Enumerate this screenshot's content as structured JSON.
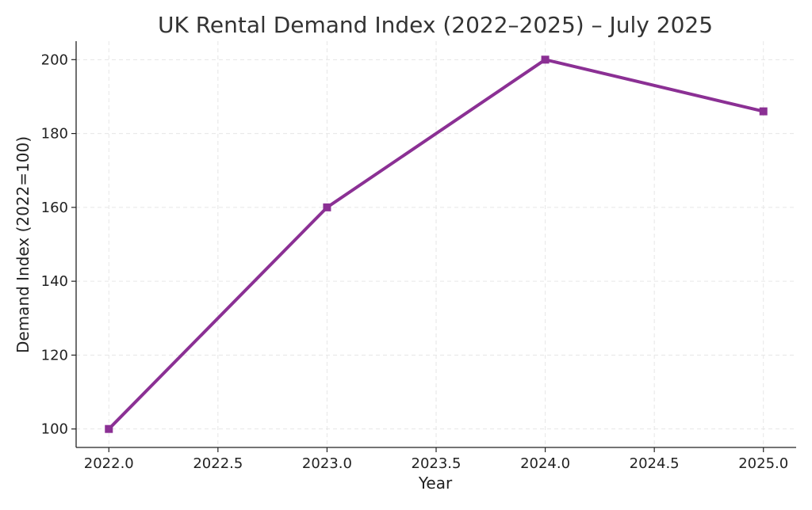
{
  "chart_data": {
    "type": "line",
    "title": "UK Rental Demand Index (2022–2025) – July 2025",
    "xlabel": "Year",
    "ylabel": "Demand Index (2022=100)",
    "x": [
      2022,
      2023,
      2024,
      2025
    ],
    "series": [
      {
        "values": [
          100,
          160,
          200,
          186
        ]
      }
    ],
    "xlim": [
      2021.85,
      2025.15
    ],
    "ylim": [
      95,
      205
    ],
    "xticks": [
      2022.0,
      2022.5,
      2023.0,
      2023.5,
      2024.0,
      2024.5,
      2025.0
    ],
    "xtick_labels": [
      "2022.0",
      "2022.5",
      "2023.0",
      "2023.5",
      "2024.0",
      "2024.5",
      "2025.0"
    ],
    "yticks": [
      100,
      120,
      140,
      160,
      180,
      200
    ],
    "ytick_labels": [
      "100",
      "120",
      "140",
      "160",
      "180",
      "200"
    ],
    "grid": true,
    "marker": "square",
    "colors": {
      "line": "#8B3094",
      "grid": "#e6e6e6",
      "axis": "#222222"
    }
  }
}
